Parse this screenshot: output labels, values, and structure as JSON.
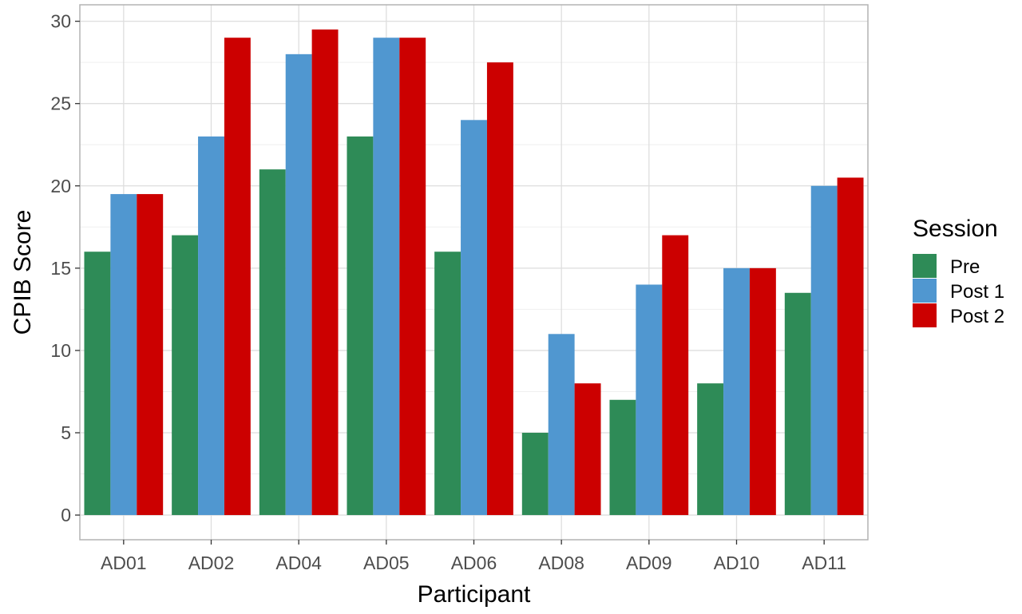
{
  "chart_data": {
    "type": "bar",
    "title": "",
    "xlabel": "Participant",
    "ylabel": "CPIB Score",
    "ylim": [
      -1.5,
      31
    ],
    "yticks": [
      0,
      5,
      10,
      15,
      20,
      25,
      30
    ],
    "grid": true,
    "legend_title": "Session",
    "legend_position": "right",
    "categories": [
      "AD01",
      "AD02",
      "AD04",
      "AD05",
      "AD06",
      "AD08",
      "AD09",
      "AD10",
      "AD11"
    ],
    "series": [
      {
        "name": "Pre",
        "color": "#2e8b57",
        "values": [
          16,
          17,
          21,
          23,
          16,
          5,
          7,
          8,
          13.5
        ]
      },
      {
        "name": "Post 1",
        "color": "#5097d0",
        "values": [
          19.5,
          23,
          28,
          29,
          24,
          11,
          14,
          15,
          20
        ]
      },
      {
        "name": "Post 2",
        "color": "#cc0000",
        "values": [
          19.5,
          29,
          29.5,
          29,
          27.5,
          8,
          17,
          15,
          20.5
        ]
      }
    ]
  }
}
